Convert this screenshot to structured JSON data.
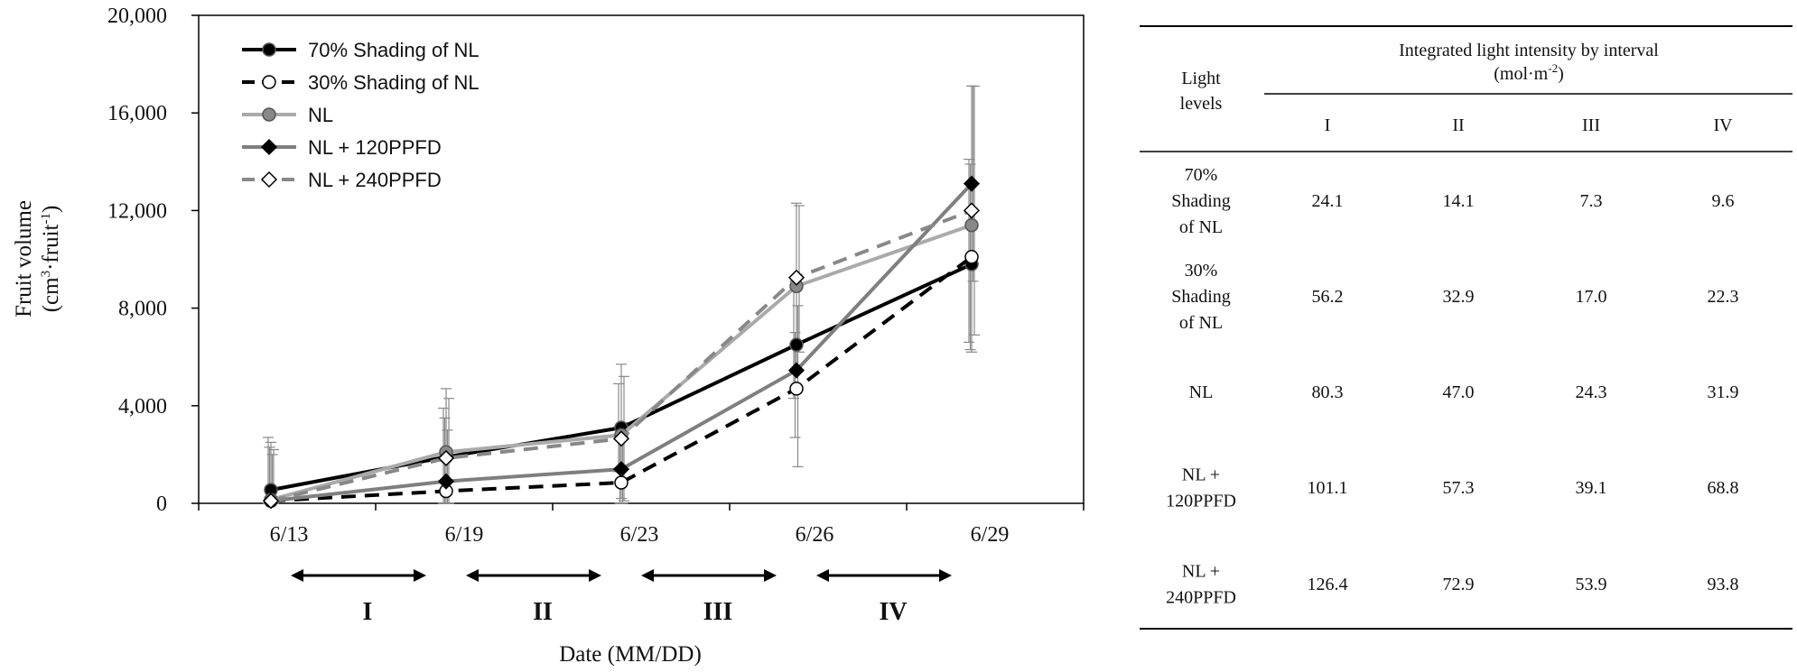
{
  "chart_data": {
    "type": "line",
    "title": "",
    "xlabel": "Date (MM/DD)",
    "ylabel": "Fruit volume",
    "ylabel_units": {
      "base": "(cm",
      "sup1": "3",
      "mid": "·fruit",
      "sup2": "-1",
      "end": ")"
    },
    "ylim": [
      0,
      20000
    ],
    "yticks": [
      0,
      4000,
      8000,
      12000,
      16000,
      20000
    ],
    "ytick_labels": [
      "0",
      "4,000",
      "8,000",
      "12,000",
      "16,000",
      "20,000"
    ],
    "categories": [
      "6/13",
      "6/19",
      "6/23",
      "6/26",
      "6/29"
    ],
    "intervals": [
      "I",
      "II",
      "III",
      "IV"
    ],
    "legend_position": "top-left",
    "series": [
      {
        "name": "70% Shading of NL",
        "color": "#000000",
        "dash": "solid",
        "marker": "circle",
        "marker_fill": "#000000",
        "values": [
          550,
          1900,
          3100,
          6500,
          9800
        ],
        "err_high": [
          2700,
          3900,
          4900,
          8700,
          14100
        ],
        "err_low": [
          0,
          0,
          1300,
          4300,
          6600
        ]
      },
      {
        "name": "30% Shading of NL",
        "color": "#000000",
        "dash": "dashed",
        "marker": "circle",
        "marker_fill": "#ffffff",
        "values": [
          100,
          500,
          850,
          4700,
          10100
        ],
        "err_high": [
          2300,
          3500,
          2800,
          7000,
          13900
        ],
        "err_low": [
          0,
          0,
          0,
          2700,
          6300
        ]
      },
      {
        "name": "NL",
        "color": "#aaaaaa",
        "dash": "solid",
        "marker": "circle",
        "marker_fill": "#888888",
        "values": [
          150,
          2100,
          2800,
          8900,
          11400
        ],
        "err_high": [
          2500,
          4700,
          5700,
          12300,
          17100
        ],
        "err_low": [
          0,
          0,
          200,
          5500,
          6200
        ]
      },
      {
        "name": "NL + 120PPFD",
        "color": "#7f7f7f",
        "dash": "solid",
        "marker": "diamond",
        "marker_fill": "#000000",
        "values": [
          100,
          900,
          1400,
          5450,
          13100
        ],
        "err_high": [
          2000,
          3000,
          3300,
          8100,
          17100
        ],
        "err_low": [
          0,
          0,
          0,
          1500,
          9100
        ]
      },
      {
        "name": "NL + 240PPFD",
        "color": "#888888",
        "dash": "dashed",
        "marker": "diamond",
        "marker_fill": "#ffffff",
        "values": [
          100,
          1850,
          2650,
          9250,
          12000
        ],
        "err_high": [
          2200,
          4300,
          5200,
          12200,
          17100
        ],
        "err_low": [
          0,
          0,
          100,
          6200,
          6900
        ]
      }
    ]
  },
  "table": {
    "header_col": "Light levels",
    "header_col_lines": [
      "Light",
      "levels"
    ],
    "header_group": "Integrated light intensity by interval",
    "header_unit": "(mol·m",
    "header_unit_sup": "-2",
    "header_unit_end": ")",
    "columns": [
      "I",
      "II",
      "III",
      "IV"
    ],
    "rows": [
      {
        "label_lines": [
          "70%",
          "Shading",
          "of NL"
        ],
        "values": [
          "24.1",
          "14.1",
          "7.3",
          "9.6"
        ]
      },
      {
        "label_lines": [
          "30%",
          "Shading",
          "of NL"
        ],
        "values": [
          "56.2",
          "32.9",
          "17.0",
          "22.3"
        ]
      },
      {
        "label_lines": [
          "NL"
        ],
        "values": [
          "80.3",
          "47.0",
          "24.3",
          "31.9"
        ]
      },
      {
        "label_lines": [
          "NL +",
          "120PPFD"
        ],
        "values": [
          "101.1",
          "57.3",
          "39.1",
          "68.8"
        ]
      },
      {
        "label_lines": [
          "NL +",
          "240PPFD"
        ],
        "values": [
          "126.4",
          "72.9",
          "53.9",
          "93.8"
        ]
      }
    ]
  }
}
